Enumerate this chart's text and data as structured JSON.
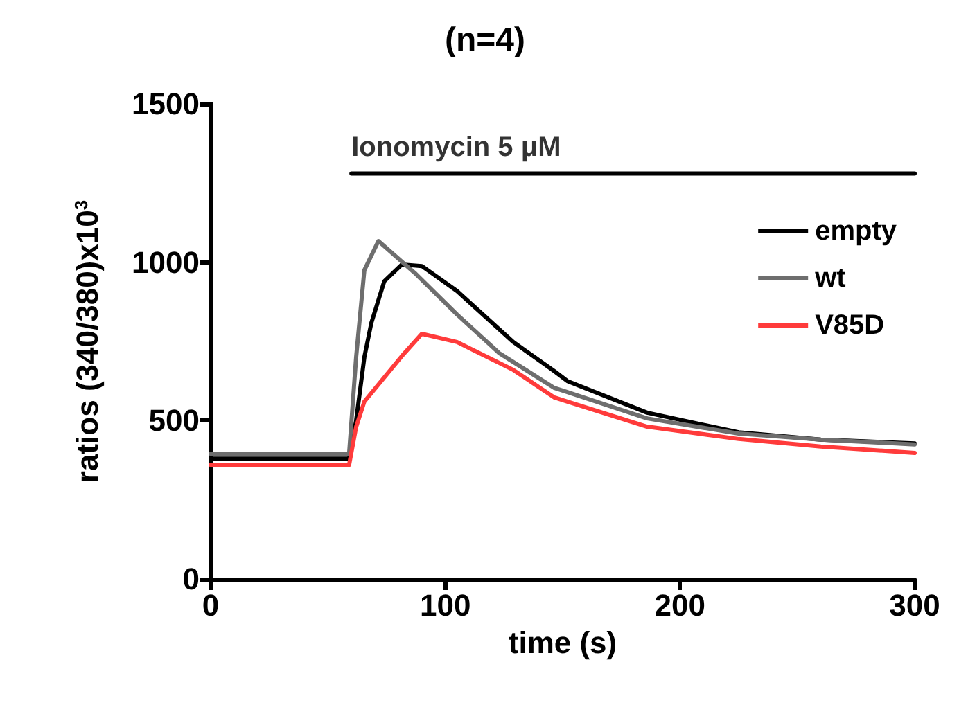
{
  "chart_data": {
    "type": "line",
    "title": "(n=4)",
    "xlabel": "time (s)",
    "ylabel": "ratios (340/380)x10$^{3}$",
    "xlim": [
      0,
      300
    ],
    "xticks": [
      0,
      100,
      200,
      300
    ],
    "ylim": [
      0,
      1500
    ],
    "yticks": [
      0,
      500,
      1000,
      1500
    ],
    "grid": false,
    "legend": "top right",
    "marker": "none",
    "line_style": "solid",
    "annotations": [
      {
        "text": "Ionomycin 5 μM",
        "x": 60,
        "y": 1280
      }
    ],
    "series": [
      {
        "name": "empty",
        "color": "#000000",
        "x": [
          0,
          30,
          59,
          62,
          65.5,
          68.5,
          74,
          81.5,
          90,
          105,
          129,
          146.5,
          152,
          186,
          225,
          260,
          300
        ],
        "values": [
          380,
          380,
          380,
          500,
          700,
          809,
          940,
          993,
          988,
          909,
          748,
          656,
          625,
          525,
          463,
          440,
          428
        ]
      },
      {
        "name": "wt",
        "color": "#6e6e6e",
        "x": [
          0,
          30,
          59,
          62,
          65.5,
          71.5,
          87,
          105,
          123,
          146.5,
          152,
          186,
          225,
          260,
          300
        ],
        "values": [
          395,
          395,
          395,
          700,
          975,
          1067,
          966,
          835,
          713,
          603,
          590,
          507,
          459,
          440,
          425
        ]
      },
      {
        "color": "#000000",
        "x": [
          60,
          300
        ],
        "values": [
          1280,
          1280
        ]
      },
      {
        "name": "V85D",
        "color": "#ff3b3b",
        "x": [
          0,
          30,
          59,
          62,
          65.5,
          81.5,
          90,
          105,
          129,
          146.5,
          152,
          186,
          225,
          260,
          300
        ],
        "values": [
          360,
          360,
          360,
          480,
          560,
          704,
          774,
          748,
          660,
          573,
          560,
          481,
          442,
          418,
          398
        ]
      }
    ]
  }
}
